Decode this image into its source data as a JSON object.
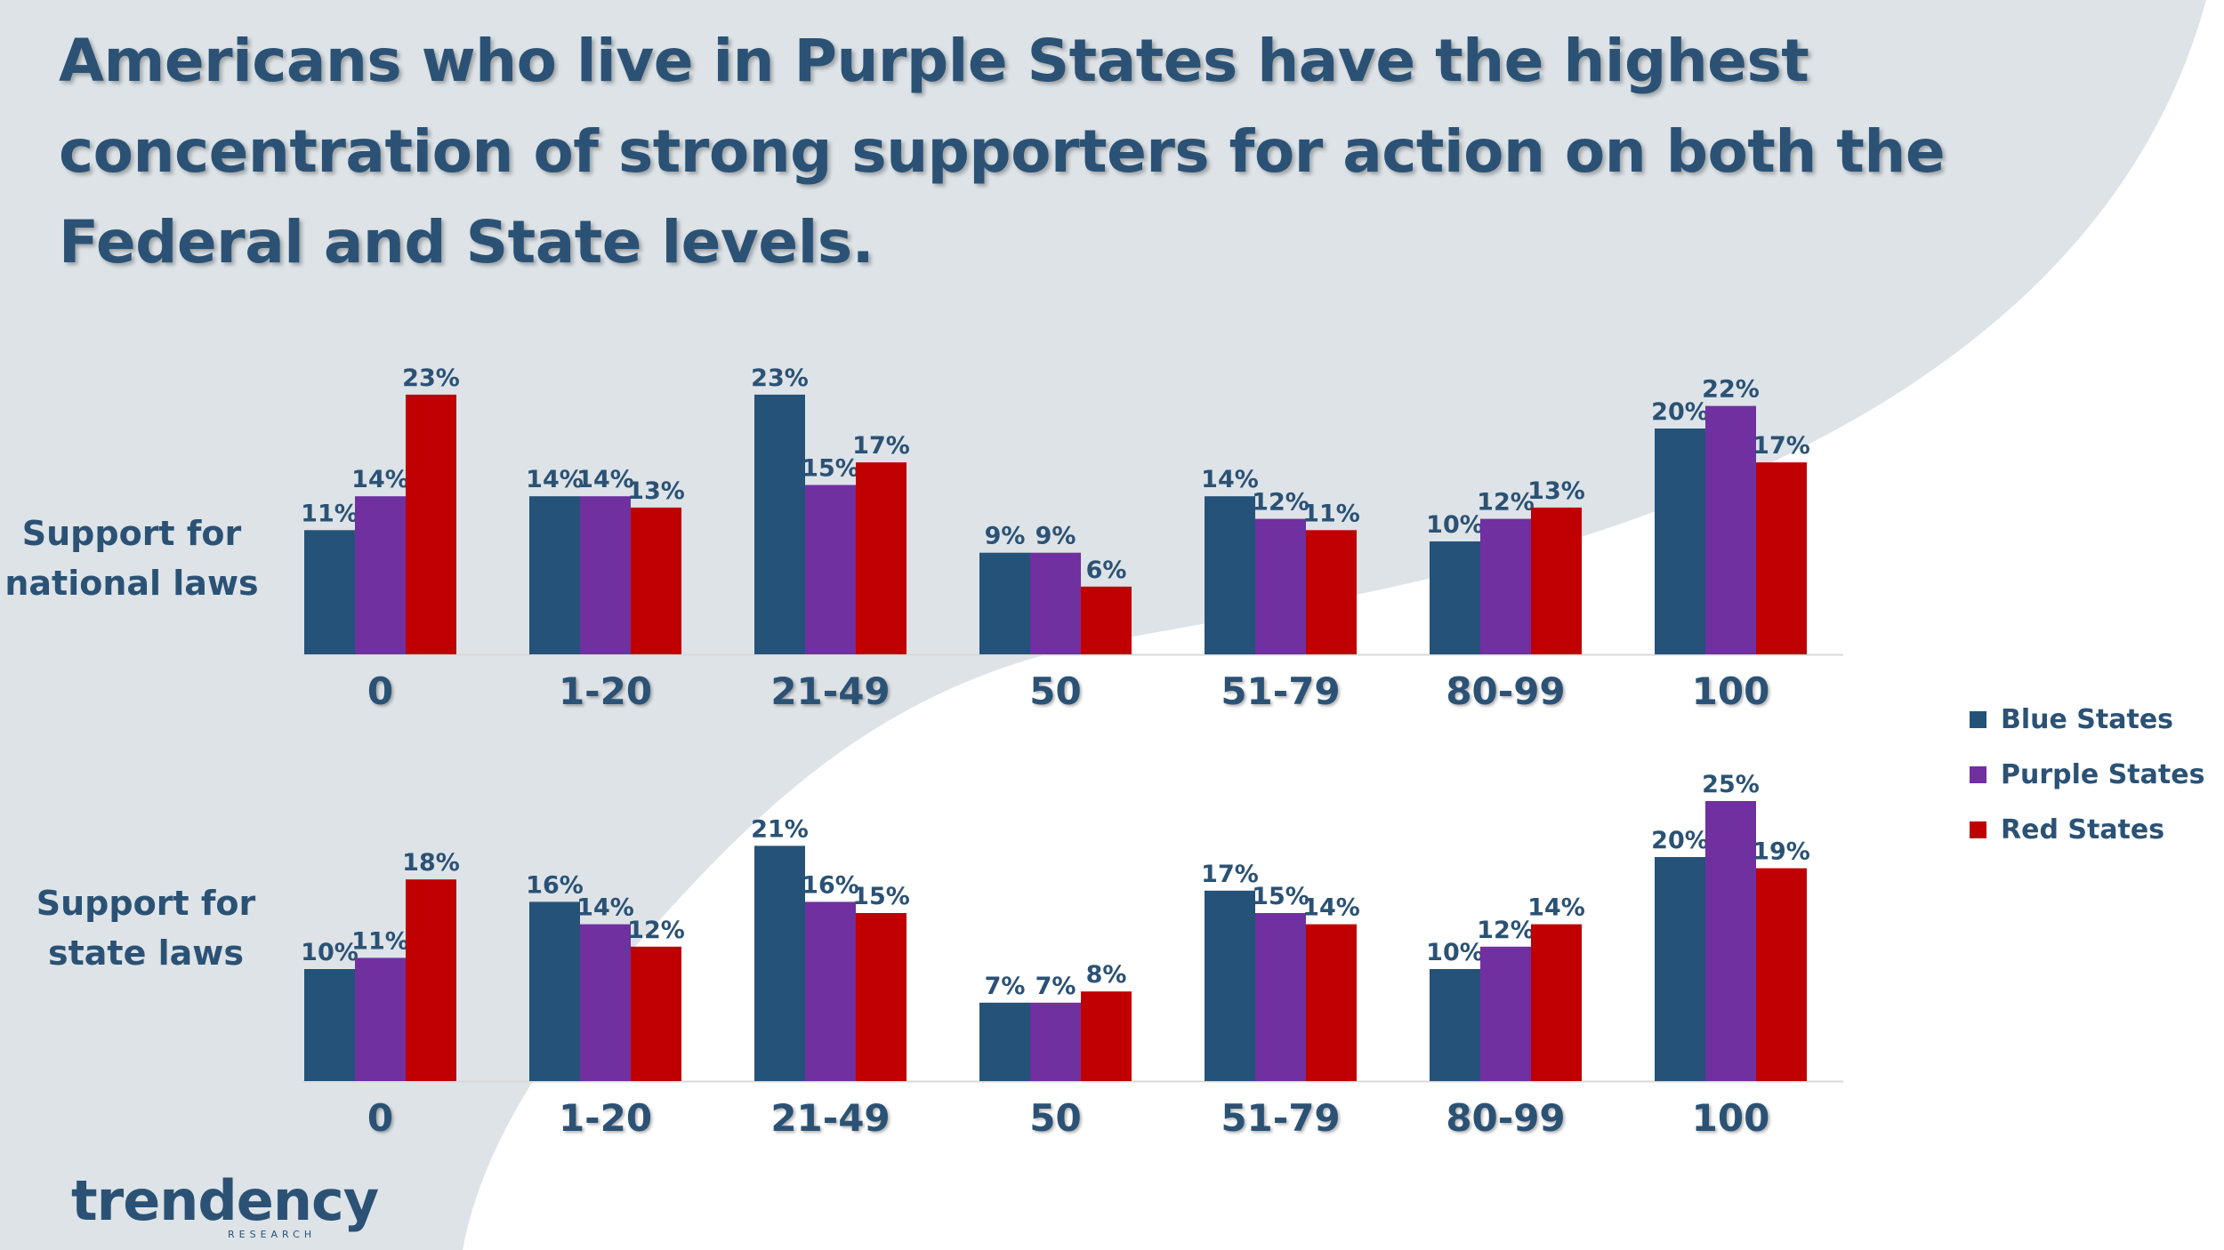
{
  "title": "Americans who live in Purple States have the highest concentration of strong supporters for action on both the Federal and State levels.",
  "colors": {
    "blue": "#255278",
    "purple": "#7030a0",
    "red": "#c00000",
    "text": "#2b5275",
    "background_shape": "#dde3e7"
  },
  "legend": {
    "items": [
      "Blue States",
      "Purple States",
      "Red States"
    ]
  },
  "logo": {
    "text": "trendency",
    "subtext": "RESEARCH"
  },
  "chart_data": [
    {
      "type": "bar",
      "title": "Support for national laws",
      "row_label_line1": "Support for",
      "row_label_line2": "national laws",
      "categories": [
        "0",
        "1-20",
        "21-49",
        "50",
        "51-79",
        "80-99",
        "100"
      ],
      "series": [
        {
          "name": "Blue States",
          "values": [
            11,
            14,
            23,
            9,
            14,
            10,
            20
          ],
          "labels": [
            "11%",
            "14%",
            "23%",
            "9%",
            "14%",
            "10%",
            "20%"
          ]
        },
        {
          "name": "Purple States",
          "values": [
            14,
            14,
            15,
            9,
            12,
            12,
            22
          ],
          "labels": [
            "14%",
            "14%",
            "15%",
            "9%",
            "12%",
            "12%",
            "22%"
          ]
        },
        {
          "name": "Red States",
          "values": [
            23,
            13,
            17,
            6,
            11,
            13,
            17
          ],
          "labels": [
            "23%",
            "13%",
            "17%",
            "6%",
            "11%",
            "13%",
            "17%"
          ]
        }
      ],
      "unit": "%"
    },
    {
      "type": "bar",
      "title": "Support for state laws",
      "row_label_line1": "Support for",
      "row_label_line2": "state laws",
      "categories": [
        "0",
        "1-20",
        "21-49",
        "50",
        "51-79",
        "80-99",
        "100"
      ],
      "series": [
        {
          "name": "Blue States",
          "values": [
            10,
            16,
            21,
            7,
            17,
            10,
            20
          ],
          "labels": [
            "10%",
            "16%",
            "21%",
            "7%",
            "17%",
            "10%",
            "20%"
          ]
        },
        {
          "name": "Purple States",
          "values": [
            11,
            14,
            16,
            7,
            15,
            12,
            25
          ],
          "labels": [
            "11%",
            "14%",
            "16%",
            "7%",
            "15%",
            "12%",
            "25%"
          ]
        },
        {
          "name": "Red States",
          "values": [
            18,
            12,
            15,
            8,
            14,
            14,
            19
          ],
          "labels": [
            "18%",
            "12%",
            "15%",
            "8%",
            "14%",
            "14%",
            "19%"
          ]
        }
      ],
      "unit": "%"
    }
  ]
}
